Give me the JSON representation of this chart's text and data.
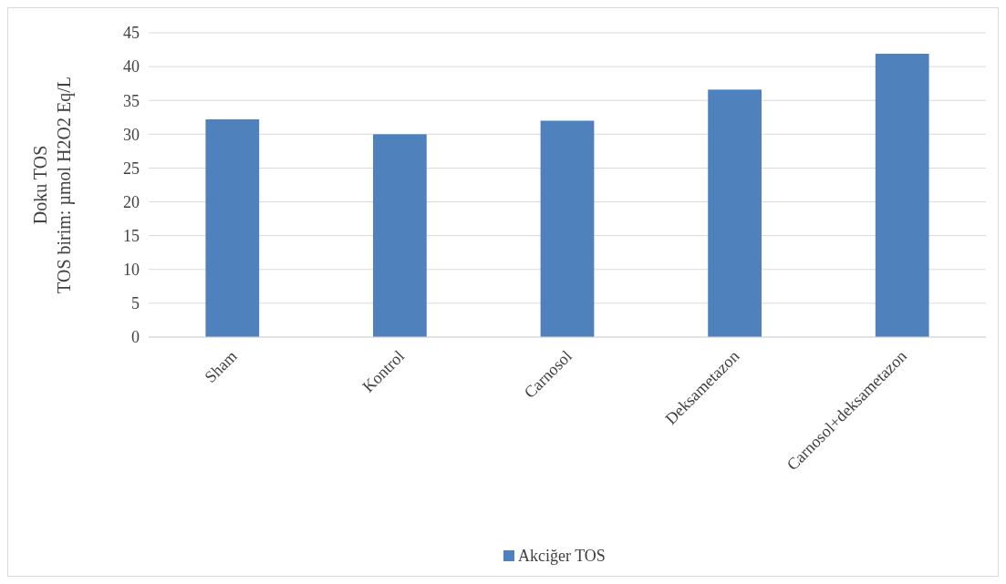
{
  "chart_data": {
    "type": "bar",
    "ylabel": "Doku  TOS\nTOS birim: µmol H2O2 Eq/L",
    "categories": [
      "Sham",
      "Kontrol",
      "Carnosol",
      "Deksametazon",
      "Carnosol+deksametazon"
    ],
    "series": [
      {
        "name": "Akciğer TOS",
        "color": "#4f81bd",
        "values": [
          32.2,
          30,
          32,
          36.6,
          41.9
        ]
      }
    ],
    "ylim": [
      0,
      45
    ],
    "yticks": [
      0,
      5,
      10,
      15,
      20,
      25,
      30,
      35,
      40,
      45
    ],
    "grid": "y",
    "legend": "bottom"
  }
}
